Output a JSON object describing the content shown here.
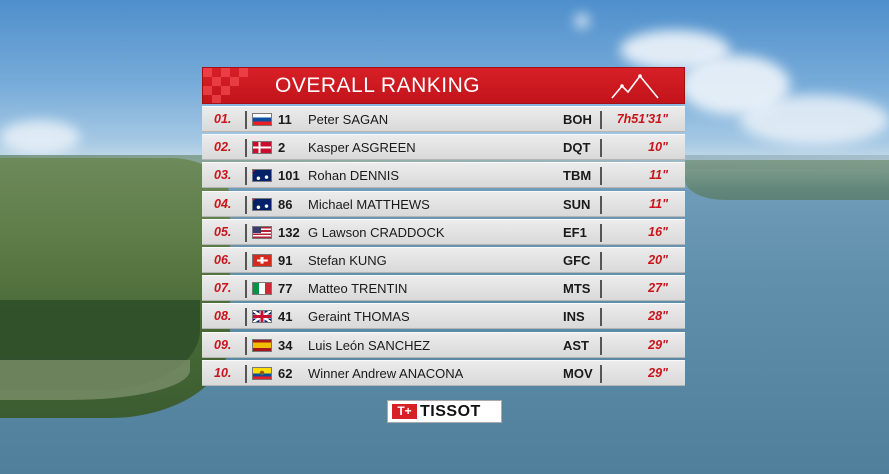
{
  "header": {
    "title": "OVERALL RANKING",
    "icon": "mountain-icon"
  },
  "colors": {
    "accent": "#c8141b",
    "header_bg": "#d71f26",
    "row_bg": "#e3e3e3"
  },
  "ranking": [
    {
      "pos": "01.",
      "flag": "svk",
      "bib": "11",
      "name": "Peter SAGAN",
      "team": "BOH",
      "time": "7h51'31\""
    },
    {
      "pos": "02.",
      "flag": "den",
      "bib": "2",
      "name": "Kasper ASGREEN",
      "team": "DQT",
      "time": "10\""
    },
    {
      "pos": "03.",
      "flag": "aus",
      "bib": "101",
      "name": "Rohan DENNIS",
      "team": "TBM",
      "time": "11\""
    },
    {
      "pos": "04.",
      "flag": "aus",
      "bib": "86",
      "name": "Michael MATTHEWS",
      "team": "SUN",
      "time": "11\""
    },
    {
      "pos": "05.",
      "flag": "usa",
      "bib": "132",
      "name": "G Lawson CRADDOCK",
      "team": "EF1",
      "time": "16\""
    },
    {
      "pos": "06.",
      "flag": "sui",
      "bib": "91",
      "name": "Stefan KUNG",
      "team": "GFC",
      "time": "20\""
    },
    {
      "pos": "07.",
      "flag": "ita",
      "bib": "77",
      "name": "Matteo TRENTIN",
      "team": "MTS",
      "time": "27\""
    },
    {
      "pos": "08.",
      "flag": "gbr",
      "bib": "41",
      "name": "Geraint THOMAS",
      "team": "INS",
      "time": "28\""
    },
    {
      "pos": "09.",
      "flag": "esp",
      "bib": "34",
      "name": "Luis León SANCHEZ",
      "team": "AST",
      "time": "29\""
    },
    {
      "pos": "10.",
      "flag": "ecu",
      "bib": "62",
      "name": "Winner Andrew ANACONA",
      "team": "MOV",
      "time": "29\""
    }
  ],
  "sponsor": {
    "mark": "T+",
    "name": "TISSOT"
  }
}
